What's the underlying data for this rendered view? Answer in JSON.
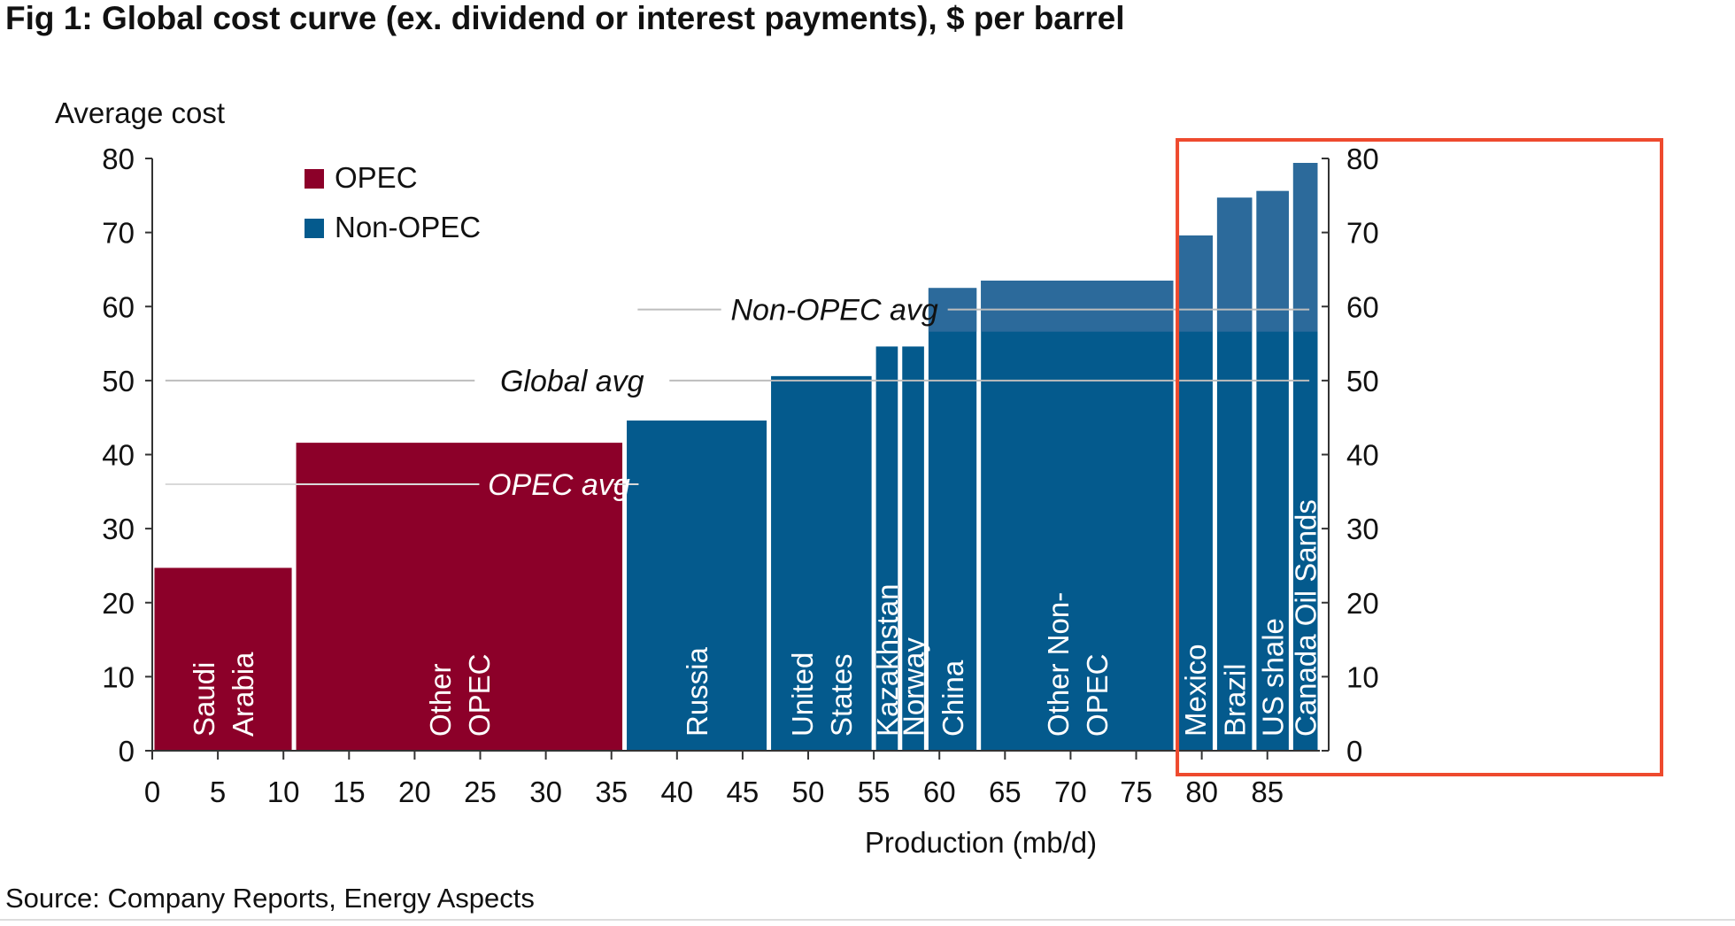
{
  "title": "Fig 1: Global cost curve (ex. dividend or interest payments), $ per barrel",
  "source": "Source: Company Reports, Energy Aspects",
  "colors": {
    "opec": "#8c0029",
    "non_opec": "#045a8d",
    "non_opec_light": "#2c6a9b",
    "highlight_box": "#ee4a2e",
    "avg_line": "#bdbdbd",
    "axis": "#333333"
  },
  "chart_data": {
    "type": "bar",
    "subtype": "variable-width cost curve",
    "xlabel": "Production (mb/d)",
    "ylabel": "Average cost",
    "xlim": [
      0,
      89
    ],
    "ylim": [
      0,
      80
    ],
    "x_ticks": [
      0,
      5,
      10,
      15,
      20,
      25,
      30,
      35,
      40,
      45,
      50,
      55,
      60,
      65,
      70,
      75,
      80,
      85
    ],
    "y_ticks": [
      0,
      10,
      20,
      30,
      40,
      50,
      60,
      70,
      80
    ],
    "secondary_y_axis": true,
    "legend": {
      "placement": "top-left",
      "entries": [
        {
          "label": "OPEC",
          "color": "#8c0029"
        },
        {
          "label": "Non-OPEC",
          "color": "#045a8d"
        }
      ]
    },
    "bars": [
      {
        "label": "Saudi Arabia",
        "lines": [
          "Saudi",
          "Arabia"
        ],
        "group": "OPEC",
        "x_start": 0,
        "x_end": 10.8,
        "value": 24.7
      },
      {
        "label": "Other OPEC",
        "lines": [
          "Other",
          "OPEC"
        ],
        "group": "OPEC",
        "x_start": 10.8,
        "x_end": 36,
        "value": 41.6
      },
      {
        "label": "Russia",
        "lines": [
          "Russia"
        ],
        "group": "Non-OPEC",
        "x_start": 36,
        "x_end": 47,
        "value": 44.6
      },
      {
        "label": "United States",
        "lines": [
          "United",
          "States"
        ],
        "group": "Non-OPEC",
        "x_start": 47,
        "x_end": 55,
        "value": 50.6
      },
      {
        "label": "Kazakhstan",
        "lines": [
          "Kazakhstan"
        ],
        "group": "Non-OPEC",
        "x_start": 55,
        "x_end": 57,
        "value": 54.6
      },
      {
        "label": "Norway",
        "lines": [
          "Norway"
        ],
        "group": "Non-OPEC",
        "x_start": 57,
        "x_end": 59,
        "value": 54.6
      },
      {
        "label": "China",
        "lines": [
          "China"
        ],
        "group": "Non-OPEC",
        "x_start": 59,
        "x_end": 63,
        "value": 62.5
      },
      {
        "label": "Other Non-OPEC",
        "lines": [
          "Other Non-",
          "OPEC"
        ],
        "group": "Non-OPEC",
        "x_start": 63,
        "x_end": 78,
        "value": 63.5
      },
      {
        "label": "Mexico",
        "lines": [
          "Mexico"
        ],
        "group": "Non-OPEC",
        "x_start": 78,
        "x_end": 81,
        "value": 69.6
      },
      {
        "label": "Brazil",
        "lines": [
          "Brazil"
        ],
        "group": "Non-OPEC",
        "x_start": 81,
        "x_end": 84,
        "value": 74.7
      },
      {
        "label": "US shale",
        "lines": [
          "US shale"
        ],
        "group": "Non-OPEC",
        "x_start": 84,
        "x_end": 86.8,
        "value": 75.6
      },
      {
        "label": "Canada Oil Sands",
        "lines": [
          "Canada Oil Sands"
        ],
        "group": "Non-OPEC",
        "x_start": 86.8,
        "x_end": 89,
        "value": 79.4
      }
    ],
    "reference_lines": [
      {
        "label": "OPEC avg",
        "value": 36,
        "x_start": 1,
        "x_end": 35.2
      },
      {
        "label": "Global avg",
        "value": 50,
        "x_start": 1,
        "x_end": 88.2
      },
      {
        "label": "Non-OPEC avg",
        "value": 59.6,
        "x_start": 37,
        "x_end": 88.2
      }
    ],
    "highlight": {
      "from_x": 77.6,
      "to_x": 89.2,
      "color": "#ee4a2e"
    }
  }
}
